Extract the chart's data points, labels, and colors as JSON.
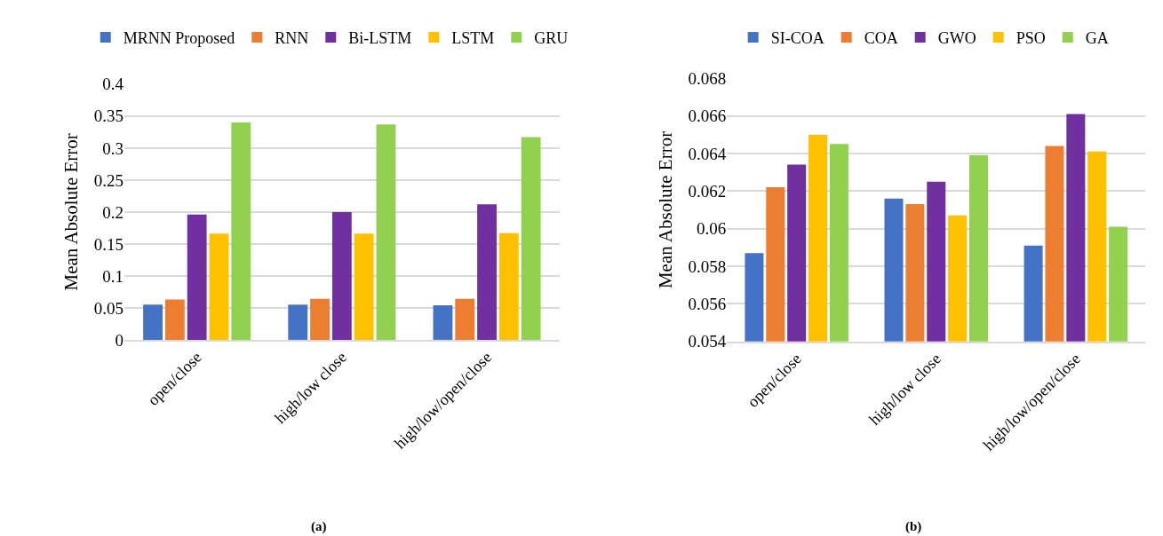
{
  "chart_data": [
    {
      "type": "bar",
      "ylabel": "Mean Absolute Error",
      "categories": [
        "open/close",
        "high/low close",
        "high/low/open/close"
      ],
      "series": [
        {
          "name": "MRNN Proposed",
          "color": "#4472c4",
          "values": [
            0.055,
            0.055,
            0.054
          ]
        },
        {
          "name": "RNN",
          "color": "#ed7d31",
          "values": [
            0.063,
            0.064,
            0.064
          ]
        },
        {
          "name": "Bi-LSTM",
          "color": "#7030a0",
          "values": [
            0.196,
            0.2,
            0.212
          ]
        },
        {
          "name": "LSTM",
          "color": "#ffc000",
          "values": [
            0.166,
            0.166,
            0.167
          ]
        },
        {
          "name": "GRU",
          "color": "#92d050",
          "values": [
            0.34,
            0.337,
            0.317
          ]
        }
      ],
      "ylim": [
        0,
        0.4
      ],
      "yticks": [
        0,
        0.05,
        0.1,
        0.15,
        0.2,
        0.25,
        0.3,
        0.35,
        0.4
      ],
      "grid": "y",
      "legend": "top",
      "annotations": [
        "(a)"
      ]
    },
    {
      "type": "bar",
      "ylabel": "Mean Absolute Error",
      "categories": [
        "open/close",
        "high/low close",
        "high/low/open/close"
      ],
      "series": [
        {
          "name": "SI-COA",
          "color": "#4472c4",
          "values": [
            0.0587,
            0.0616,
            0.0591
          ]
        },
        {
          "name": "COA",
          "color": "#ed7d31",
          "values": [
            0.0622,
            0.0613,
            0.0644
          ]
        },
        {
          "name": "GWO",
          "color": "#7030a0",
          "values": [
            0.0634,
            0.0625,
            0.0661
          ]
        },
        {
          "name": "PSO",
          "color": "#ffc000",
          "values": [
            0.065,
            0.0607,
            0.0641
          ]
        },
        {
          "name": "GA",
          "color": "#92d050",
          "values": [
            0.0645,
            0.0639,
            0.0601
          ]
        }
      ],
      "ylim": [
        0.054,
        0.068
      ],
      "yticks": [
        0.054,
        0.056,
        0.058,
        0.06,
        0.062,
        0.064,
        0.066,
        0.068
      ],
      "grid": "y",
      "legend": "top",
      "annotations": [
        "(b)"
      ]
    }
  ]
}
